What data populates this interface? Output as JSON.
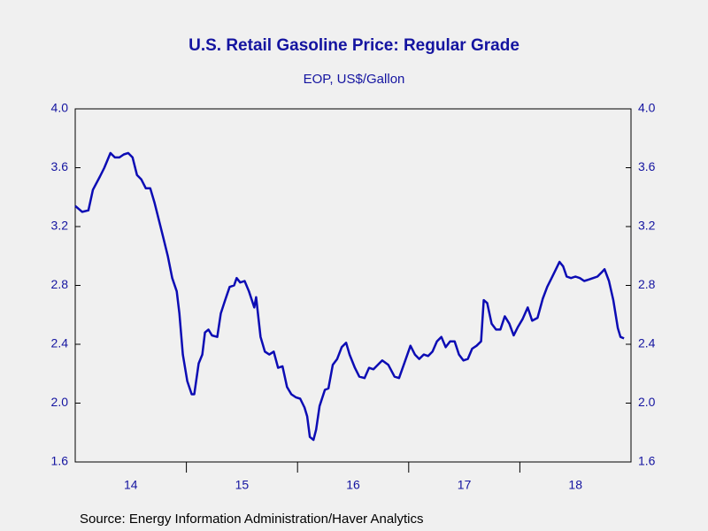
{
  "chart_data": {
    "type": "line",
    "title": "U.S. Retail Gasoline Price: Regular Grade",
    "subtitle": "EOP, US$/Gallon",
    "source": "Source:  Energy Information Administration/Haver Analytics",
    "x": [
      2014.0,
      2014.063,
      2014.119,
      2014.159,
      2014.222,
      2014.262,
      2014.317,
      2014.357,
      2014.397,
      2014.437,
      2014.476,
      2014.516,
      2014.556,
      2014.595,
      2014.635,
      2014.675,
      2014.714,
      2014.754,
      2014.794,
      2014.833,
      2014.873,
      2014.913,
      2014.937,
      2014.968,
      2015.008,
      2015.048,
      2015.071,
      2015.111,
      2015.143,
      2015.167,
      2015.198,
      2015.23,
      2015.278,
      2015.31,
      2015.349,
      2015.389,
      2015.429,
      2015.452,
      2015.484,
      2015.524,
      2015.563,
      2015.611,
      2015.627,
      2015.667,
      2015.706,
      2015.746,
      2015.786,
      2015.825,
      2015.865,
      2015.905,
      2015.944,
      2015.984,
      2016.024,
      2016.063,
      2016.087,
      2016.111,
      2016.143,
      2016.167,
      2016.198,
      2016.246,
      2016.278,
      2016.317,
      2016.357,
      2016.397,
      2016.437,
      2016.468,
      2016.516,
      2016.556,
      2016.603,
      2016.643,
      2016.683,
      2016.722,
      2016.762,
      2016.817,
      2016.873,
      2016.913,
      2016.96,
      2017.016,
      2017.056,
      2017.095,
      2017.135,
      2017.175,
      2017.214,
      2017.254,
      2017.294,
      2017.333,
      2017.373,
      2017.413,
      2017.452,
      2017.492,
      2017.532,
      2017.571,
      2017.611,
      2017.651,
      2017.675,
      2017.706,
      2017.746,
      2017.786,
      2017.825,
      2017.865,
      2017.905,
      2017.944,
      2017.984,
      2018.024,
      2018.071,
      2018.111,
      2018.159,
      2018.206,
      2018.246,
      2018.286,
      2018.325,
      2018.357,
      2018.389,
      2018.421,
      2018.46,
      2018.5,
      2018.54,
      2018.579,
      2018.619,
      2018.659,
      2018.698,
      2018.738,
      2018.762,
      2018.802,
      2018.841,
      2018.881,
      2018.905,
      2018.937
    ],
    "series": [
      {
        "name": "U.S. Retail Gasoline Price: Regular Grade",
        "color": "#0c0cb4",
        "values": [
          3.34,
          3.3,
          3.31,
          3.45,
          3.54,
          3.6,
          3.7,
          3.67,
          3.67,
          3.69,
          3.7,
          3.67,
          3.55,
          3.52,
          3.46,
          3.46,
          3.36,
          3.24,
          3.12,
          3.0,
          2.85,
          2.76,
          2.61,
          2.33,
          2.15,
          2.06,
          2.06,
          2.27,
          2.33,
          2.48,
          2.5,
          2.46,
          2.45,
          2.61,
          2.7,
          2.79,
          2.8,
          2.85,
          2.82,
          2.83,
          2.76,
          2.65,
          2.72,
          2.45,
          2.35,
          2.33,
          2.35,
          2.24,
          2.25,
          2.11,
          2.06,
          2.04,
          2.03,
          1.97,
          1.91,
          1.77,
          1.75,
          1.82,
          1.98,
          2.09,
          2.1,
          2.26,
          2.3,
          2.38,
          2.41,
          2.33,
          2.24,
          2.18,
          2.17,
          2.24,
          2.23,
          2.26,
          2.29,
          2.26,
          2.18,
          2.17,
          2.27,
          2.39,
          2.33,
          2.3,
          2.33,
          2.32,
          2.35,
          2.42,
          2.45,
          2.38,
          2.42,
          2.42,
          2.33,
          2.29,
          2.3,
          2.37,
          2.39,
          2.42,
          2.7,
          2.68,
          2.54,
          2.5,
          2.5,
          2.59,
          2.54,
          2.46,
          2.52,
          2.57,
          2.65,
          2.56,
          2.58,
          2.71,
          2.79,
          2.85,
          2.91,
          2.96,
          2.93,
          2.86,
          2.85,
          2.86,
          2.85,
          2.83,
          2.84,
          2.85,
          2.86,
          2.89,
          2.91,
          2.83,
          2.7,
          2.51,
          2.45,
          2.44
        ]
      }
    ],
    "xlim": [
      2014,
      2019
    ],
    "xticks": [
      {
        "value": 2014.5,
        "label": "14"
      },
      {
        "value": 2015.5,
        "label": "15"
      },
      {
        "value": 2016.5,
        "label": "16"
      },
      {
        "value": 2017.5,
        "label": "17"
      },
      {
        "value": 2018.5,
        "label": "18"
      }
    ],
    "x_tick_marks": [
      2015,
      2016,
      2017,
      2018
    ],
    "ylim": [
      1.6,
      4.0
    ],
    "yticks": [
      1.6,
      {
        "value": 2.0,
        "label": "2.0"
      },
      2.4,
      2.8,
      3.2,
      3.6,
      {
        "value": 4.0,
        "label": "4.0"
      }
    ],
    "grid": false
  }
}
